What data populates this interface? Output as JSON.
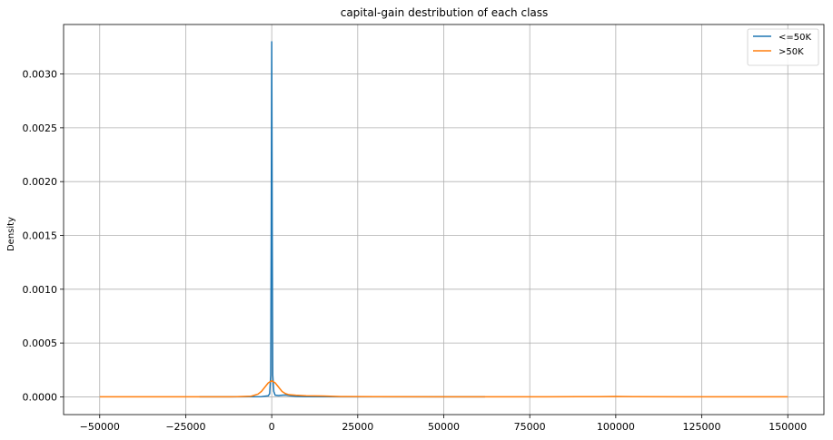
{
  "chart_data": {
    "type": "line",
    "title": "capital-gain destribution of each class",
    "xlabel": "",
    "ylabel": "Density",
    "xlim": [
      -60500,
      160500
    ],
    "ylim": [
      -0.000165,
      0.00346
    ],
    "xticks": [
      -50000,
      -25000,
      0,
      25000,
      50000,
      75000,
      100000,
      125000,
      150000
    ],
    "xtick_labels": [
      "−50000",
      "−25000",
      "0",
      "25000",
      "50000",
      "75000",
      "100000",
      "125000",
      "150000"
    ],
    "yticks": [
      0.0,
      0.0005,
      0.001,
      0.0015,
      0.002,
      0.0025,
      0.003
    ],
    "ytick_labels": [
      "0.0000",
      "0.0005",
      "0.0010",
      "0.0015",
      "0.0020",
      "0.0025",
      "0.0030"
    ],
    "grid": true,
    "legend_position": "top-right",
    "series": [
      {
        "name": "<=50K",
        "color": "#1f77b4",
        "x": [
          -21000,
          -10000,
          -3000,
          -1000,
          -600,
          -300,
          -150,
          0,
          150,
          300,
          600,
          1000,
          2000,
          3000,
          4000,
          5000,
          7000,
          10000,
          20000,
          40000,
          62000
        ],
        "y": [
          0,
          0,
          2e-06,
          1e-05,
          3e-05,
          0.0002,
          0.0015,
          0.0033,
          0.0015,
          0.0002,
          5e-05,
          1.5e-05,
          1.2e-05,
          1.5e-05,
          1.7e-05,
          1.2e-05,
          4e-06,
          1e-06,
          0,
          0,
          0
        ]
      },
      {
        "name": ">50K",
        "color": "#ff7f0e",
        "x": [
          -50000,
          -20000,
          -10000,
          -6000,
          -4000,
          -3000,
          -2000,
          -1000,
          0,
          1000,
          2000,
          3000,
          4000,
          5000,
          7000,
          10000,
          15000,
          20000,
          30000,
          50000,
          80000,
          95000,
          100000,
          105000,
          120000,
          150000
        ],
        "y": [
          0,
          0,
          1e-06,
          6e-06,
          2.5e-05,
          5e-05,
          9e-05,
          0.00013,
          0.00015,
          0.00013,
          9e-05,
          5e-05,
          3e-05,
          2e-05,
          1.5e-05,
          1e-05,
          8e-06,
          3e-06,
          1e-06,
          0,
          0,
          2e-06,
          4e-06,
          2e-06,
          0,
          0
        ]
      }
    ]
  }
}
